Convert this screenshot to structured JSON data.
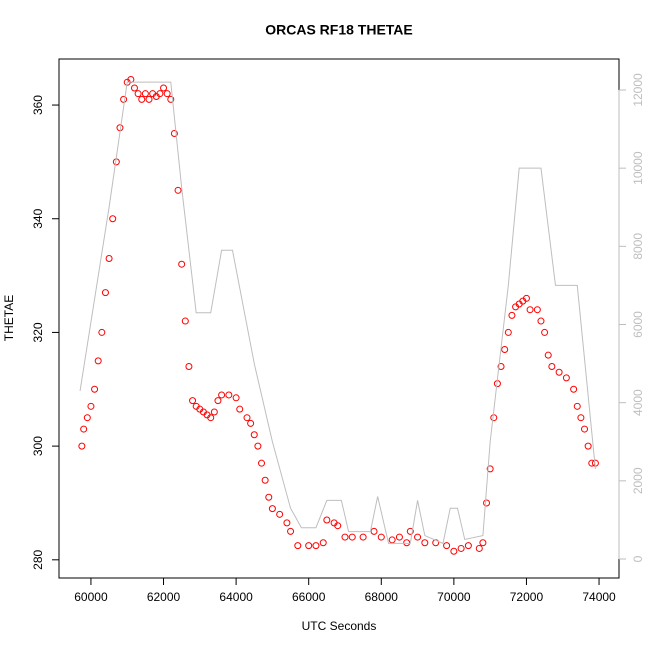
{
  "chart_data": {
    "type": "scatter",
    "title": "ORCAS RF18 THETAE",
    "x_label": "UTC Seconds",
    "y_label": "THETAE",
    "xlim": [
      59120,
      74550
    ],
    "xticks": [
      60000,
      62000,
      64000,
      66000,
      68000,
      70000,
      72000,
      74000
    ],
    "ylim": [
      276.8,
      368.1
    ],
    "yticks": [
      280,
      300,
      320,
      340,
      360
    ],
    "y2lim": [
      -486,
      12793
    ],
    "y2ticks": [
      0,
      2000,
      4000,
      6000,
      8000,
      10000,
      12000
    ],
    "series": [
      {
        "type": "scatter",
        "color": "#ff0000",
        "x": [
          59750,
          59800,
          59900,
          60000,
          60100,
          60200,
          60300,
          60400,
          60500,
          60600,
          60700,
          60800,
          60900,
          61000,
          61100,
          61200,
          61300,
          61400,
          61500,
          61600,
          61700,
          61800,
          61900,
          62000,
          62100,
          62200,
          62300,
          62400,
          62500,
          62600,
          62700,
          62800,
          62900,
          63000,
          63100,
          63200,
          63300,
          63400,
          63500,
          63600,
          63800,
          64000,
          64100,
          64300,
          64400,
          64500,
          64600,
          64700,
          64800,
          64900,
          65000,
          65200,
          65400,
          65500,
          65700,
          66000,
          66200,
          66400,
          66500,
          66700,
          66800,
          67000,
          67200,
          67500,
          67800,
          68000,
          68300,
          68500,
          68700,
          68800,
          69000,
          69200,
          69500,
          69800,
          70000,
          70200,
          70400,
          70700,
          70800,
          70900,
          71000,
          71100,
          71200,
          71300,
          71400,
          71500,
          71600,
          71700,
          71800,
          71900,
          72000,
          72100,
          72300,
          72400,
          72500,
          72600,
          72700,
          72900,
          73100,
          73300,
          73400,
          73500,
          73600,
          73700,
          73800,
          73900
        ],
        "values": [
          300,
          303,
          305,
          307,
          310,
          315,
          320,
          327,
          333,
          340,
          350,
          356,
          361,
          364,
          364.5,
          363,
          362,
          361,
          362,
          361,
          362,
          361.5,
          362,
          363,
          362,
          361,
          355,
          345,
          332,
          322,
          314,
          308,
          307,
          306.5,
          306,
          305.5,
          305,
          306,
          308,
          309,
          309,
          308.5,
          306.5,
          305,
          304,
          302,
          300,
          297,
          294,
          291,
          289,
          288,
          286.5,
          285,
          282.5,
          282.5,
          282.5,
          283,
          287,
          286.5,
          286,
          284,
          284,
          284,
          285,
          284,
          283.5,
          284,
          283,
          285,
          284,
          283,
          283,
          282.5,
          281.5,
          282,
          282.5,
          282,
          283,
          290,
          296,
          305,
          311,
          314,
          317,
          320,
          323,
          324.5,
          325,
          325.5,
          326,
          324,
          324,
          322,
          320,
          316,
          314,
          313,
          312,
          310,
          307,
          305,
          303,
          300,
          297,
          297
        ]
      },
      {
        "type": "line",
        "axis": "y2",
        "color": "#bebebe",
        "x": [
          59700,
          60500,
          61000,
          62200,
          62500,
          62900,
          63300,
          63600,
          63900,
          64500,
          65000,
          65500,
          65800,
          66200,
          66500,
          66900,
          67100,
          67700,
          67900,
          68200,
          68800,
          69000,
          69200,
          69700,
          69900,
          70100,
          70300,
          70800,
          71000,
          71500,
          71800,
          72400,
          72800,
          73400,
          73900
        ],
        "values": [
          4300,
          9000,
          12200,
          12200,
          9500,
          6300,
          6300,
          7900,
          7900,
          5000,
          3000,
          1300,
          800,
          800,
          1500,
          1500,
          700,
          700,
          1600,
          400,
          400,
          1500,
          600,
          400,
          1300,
          1300,
          500,
          600,
          3000,
          7000,
          10000,
          10000,
          7000,
          7000,
          2300
        ]
      }
    ]
  }
}
